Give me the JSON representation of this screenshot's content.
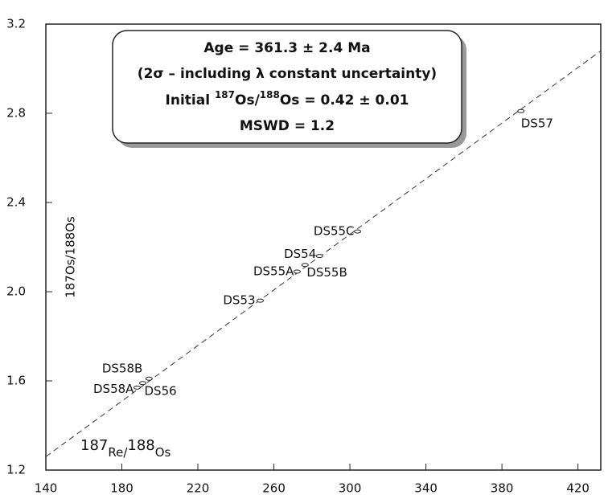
{
  "chart_data": {
    "type": "scatter",
    "xlim": [
      140,
      432
    ],
    "ylim": [
      1.2,
      3.2
    ],
    "xticks": [
      140,
      180,
      220,
      260,
      300,
      340,
      380,
      420
    ],
    "yticks": [
      {
        "value": 1.2,
        "label": "1.2"
      },
      {
        "value": 1.6,
        "label": "1.6"
      },
      {
        "value": 2,
        "label": "2.0"
      },
      {
        "value": 2.4,
        "label": "2.4"
      },
      {
        "value": 2.8,
        "label": "2.8"
      },
      {
        "value": 3.2,
        "label": "3.2"
      }
    ],
    "xlabel": [
      "187",
      "Re/",
      "188",
      "Os"
    ],
    "ylabel": "187Os/188Os",
    "annotation": {
      "line1": "Age = 361.3 ± 2.4 Ma",
      "line2": "(2σ – including λ constant uncertainty)",
      "line3": [
        "Initial ",
        "187",
        "Os/",
        "188",
        "Os = 0.42 ± 0.01"
      ],
      "line4": "MSWD = 1.2"
    },
    "labels": [
      "DS57",
      "DS55C",
      "DS54",
      "DS55B",
      "DS55A",
      "DS53",
      "DS58B",
      "DS56",
      "DS58A"
    ],
    "x": [
      390,
      304,
      284,
      276.4,
      272.2,
      252.8,
      194.3,
      191,
      188
    ],
    "y": [
      2.81,
      2.27,
      2.16,
      2.12,
      2.09,
      1.96,
      1.61,
      1.59,
      1.57
    ],
    "isochron": {
      "x": [
        140,
        432
      ],
      "y": [
        1.26,
        3.08
      ]
    }
  }
}
